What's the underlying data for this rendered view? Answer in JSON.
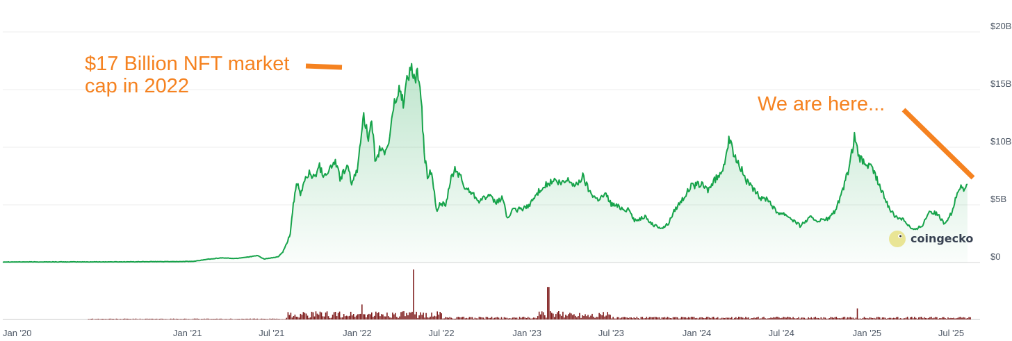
{
  "chart_data": {
    "type": "area",
    "xlim": [
      "2019-12-01",
      "2025-09-01"
    ],
    "ylim": [
      0,
      20
    ],
    "grid": true,
    "y_ticks": [
      {
        "value": 20,
        "label": "$20B"
      },
      {
        "value": 15,
        "label": "$15B"
      },
      {
        "value": 10,
        "label": "$10B"
      },
      {
        "value": 5,
        "label": "$5B"
      },
      {
        "value": 0,
        "label": "$0"
      }
    ],
    "x_ticks": [
      {
        "date": "2020-01-01",
        "label": "Jan '20"
      },
      {
        "date": "2021-01-01",
        "label": "Jan '21"
      },
      {
        "date": "2021-07-01",
        "label": "Jul '21"
      },
      {
        "date": "2022-01-01",
        "label": "Jan '22"
      },
      {
        "date": "2022-07-01",
        "label": "Jul '22"
      },
      {
        "date": "2023-01-01",
        "label": "Jan '23"
      },
      {
        "date": "2023-07-01",
        "label": "Jul '23"
      },
      {
        "date": "2024-01-01",
        "label": "Jan '24"
      },
      {
        "date": "2024-07-01",
        "label": "Jul '24"
      },
      {
        "date": "2025-01-01",
        "label": "Jan '25"
      },
      {
        "date": "2025-07-01",
        "label": "Jul '25"
      }
    ],
    "series": [
      {
        "color": "#16a34a",
        "points": [
          [
            "2019-12-01",
            0.05
          ],
          [
            "2020-03-01",
            0.05
          ],
          [
            "2020-06-01",
            0.05
          ],
          [
            "2020-09-01",
            0.06
          ],
          [
            "2020-12-01",
            0.08
          ],
          [
            "2021-01-15",
            0.1
          ],
          [
            "2021-02-15",
            0.3
          ],
          [
            "2021-03-15",
            0.4
          ],
          [
            "2021-04-15",
            0.35
          ],
          [
            "2021-05-15",
            0.5
          ],
          [
            "2021-06-01",
            0.6
          ],
          [
            "2021-06-15",
            0.3
          ],
          [
            "2021-07-01",
            0.4
          ],
          [
            "2021-07-15",
            0.5
          ],
          [
            "2021-07-25",
            0.9
          ],
          [
            "2021-08-01",
            1.5
          ],
          [
            "2021-08-10",
            2.5
          ],
          [
            "2021-08-15",
            4.5
          ],
          [
            "2021-08-20",
            6.0
          ],
          [
            "2021-08-25",
            6.8
          ],
          [
            "2021-09-01",
            5.8
          ],
          [
            "2021-09-10",
            7.2
          ],
          [
            "2021-09-20",
            7.8
          ],
          [
            "2021-10-01",
            7.3
          ],
          [
            "2021-10-10",
            8.5
          ],
          [
            "2021-10-20",
            7.6
          ],
          [
            "2021-11-01",
            8.0
          ],
          [
            "2021-11-15",
            8.8
          ],
          [
            "2021-11-25",
            7.3
          ],
          [
            "2021-12-10",
            8.3
          ],
          [
            "2021-12-20",
            7.0
          ],
          [
            "2022-01-01",
            7.8
          ],
          [
            "2022-01-10",
            11.5
          ],
          [
            "2022-01-15",
            13.0
          ],
          [
            "2022-01-25",
            10.5
          ],
          [
            "2022-02-01",
            12.0
          ],
          [
            "2022-02-10",
            8.5
          ],
          [
            "2022-02-20",
            10.0
          ],
          [
            "2022-03-01",
            9.5
          ],
          [
            "2022-03-10",
            10.5
          ],
          [
            "2022-03-20",
            13.5
          ],
          [
            "2022-04-01",
            15.0
          ],
          [
            "2022-04-10",
            14.0
          ],
          [
            "2022-04-20",
            16.2
          ],
          [
            "2022-04-28",
            17.0
          ],
          [
            "2022-05-05",
            15.5
          ],
          [
            "2022-05-12",
            16.5
          ],
          [
            "2022-05-20",
            13.0
          ],
          [
            "2022-05-25",
            9.5
          ],
          [
            "2022-06-01",
            7.5
          ],
          [
            "2022-06-10",
            8.0
          ],
          [
            "2022-06-20",
            4.5
          ],
          [
            "2022-07-01",
            5.2
          ],
          [
            "2022-07-10",
            4.8
          ],
          [
            "2022-07-20",
            7.0
          ],
          [
            "2022-07-30",
            8.1
          ],
          [
            "2022-08-10",
            7.5
          ],
          [
            "2022-08-20",
            6.5
          ],
          [
            "2022-09-01",
            6.2
          ],
          [
            "2022-09-20",
            5.4
          ],
          [
            "2022-10-10",
            5.8
          ],
          [
            "2022-10-25",
            5.2
          ],
          [
            "2022-11-10",
            5.6
          ],
          [
            "2022-11-20",
            3.8
          ],
          [
            "2022-12-01",
            4.5
          ],
          [
            "2022-12-15",
            4.6
          ],
          [
            "2023-01-01",
            4.8
          ],
          [
            "2023-01-15",
            5.5
          ],
          [
            "2023-02-01",
            6.5
          ],
          [
            "2023-02-15",
            6.8
          ],
          [
            "2023-03-01",
            7.1
          ],
          [
            "2023-03-15",
            6.8
          ],
          [
            "2023-04-01",
            7.2
          ],
          [
            "2023-04-15",
            6.6
          ],
          [
            "2023-05-01",
            7.5
          ],
          [
            "2023-05-15",
            6.2
          ],
          [
            "2023-06-01",
            5.5
          ],
          [
            "2023-06-20",
            5.9
          ],
          [
            "2023-07-01",
            5.1
          ],
          [
            "2023-07-20",
            4.8
          ],
          [
            "2023-08-10",
            4.5
          ],
          [
            "2023-08-20",
            3.6
          ],
          [
            "2023-09-10",
            4.0
          ],
          [
            "2023-10-01",
            3.2
          ],
          [
            "2023-10-20",
            3.0
          ],
          [
            "2023-11-01",
            3.4
          ],
          [
            "2023-11-15",
            4.6
          ],
          [
            "2023-12-01",
            5.5
          ],
          [
            "2023-12-20",
            6.6
          ],
          [
            "2024-01-10",
            6.8
          ],
          [
            "2024-01-25",
            6.3
          ],
          [
            "2024-02-10",
            7.2
          ],
          [
            "2024-02-20",
            7.6
          ],
          [
            "2024-03-01",
            8.8
          ],
          [
            "2024-03-10",
            10.6
          ],
          [
            "2024-03-20",
            9.5
          ],
          [
            "2024-04-01",
            8.6
          ],
          [
            "2024-04-15",
            7.2
          ],
          [
            "2024-05-01",
            6.3
          ],
          [
            "2024-05-20",
            5.5
          ],
          [
            "2024-06-01",
            5.6
          ],
          [
            "2024-06-20",
            4.4
          ],
          [
            "2024-07-10",
            4.2
          ],
          [
            "2024-08-01",
            3.5
          ],
          [
            "2024-08-10",
            3.2
          ],
          [
            "2024-09-01",
            3.9
          ],
          [
            "2024-09-20",
            3.6
          ],
          [
            "2024-10-10",
            3.8
          ],
          [
            "2024-10-25",
            4.5
          ],
          [
            "2024-11-10",
            6.2
          ],
          [
            "2024-11-25",
            8.5
          ],
          [
            "2024-12-05",
            10.8
          ],
          [
            "2024-12-15",
            9.0
          ],
          [
            "2025-01-01",
            8.5
          ],
          [
            "2025-01-15",
            8.0
          ],
          [
            "2025-02-01",
            6.2
          ],
          [
            "2025-02-15",
            5.0
          ],
          [
            "2025-03-01",
            4.0
          ],
          [
            "2025-03-20",
            3.8
          ],
          [
            "2025-04-05",
            3.0
          ],
          [
            "2025-04-15",
            2.8
          ],
          [
            "2025-05-01",
            3.3
          ],
          [
            "2025-05-15",
            4.5
          ],
          [
            "2025-06-01",
            4.2
          ],
          [
            "2025-06-15",
            3.4
          ],
          [
            "2025-07-01",
            4.2
          ],
          [
            "2025-07-10",
            5.5
          ],
          [
            "2025-07-20",
            6.6
          ],
          [
            "2025-07-28",
            6.2
          ],
          [
            "2025-08-05",
            6.8
          ]
        ]
      }
    ],
    "volume": {
      "color": "#7f1d1d",
      "spikes": [
        {
          "date": "2022-05-01",
          "relative": 1.0
        },
        {
          "date": "2023-02-15",
          "relative": 0.65
        },
        {
          "date": "2024-12-10",
          "relative": 0.22
        },
        {
          "date": "2022-01-10",
          "relative": 0.3
        }
      ]
    },
    "annotations": [
      {
        "text": "$17 Billion NFT market cap in 2022",
        "color": "#f58220",
        "points_to_date": "2022-04-28"
      },
      {
        "text": "We are here...",
        "color": "#f58220",
        "points_to_date": "2025-08-05"
      }
    ]
  },
  "brand": {
    "name": "coingecko",
    "logo_icon": "gecko-icon"
  }
}
